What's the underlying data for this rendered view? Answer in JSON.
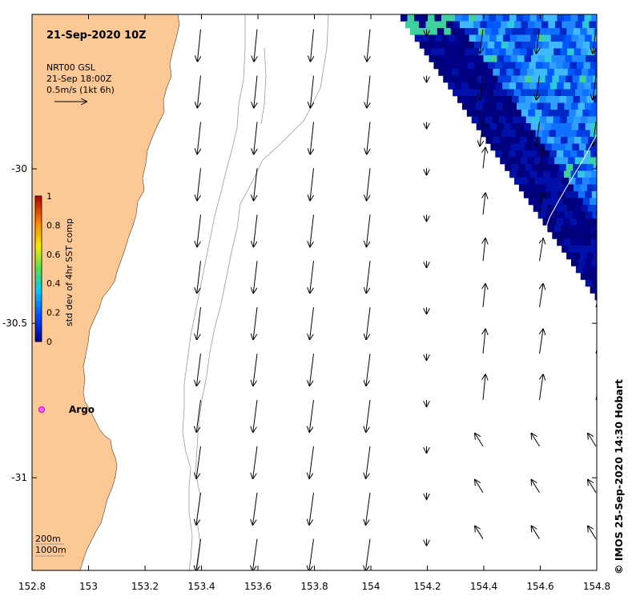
{
  "title": "21-Sep-2020 10Z",
  "vector_legend": {
    "line1": "NRT00 GSL",
    "line2": "21-Sep 18:00Z",
    "line3": "0.5m/s (1kt 6h)"
  },
  "colorbar": {
    "label": "std dev of 4hr SST comp",
    "ticks": [
      "1",
      "0.8",
      "0.6",
      "0.4",
      "0.2",
      "0"
    ]
  },
  "argo_label": "Argo",
  "depth_legend": {
    "line1": "200m",
    "line2": "1000m"
  },
  "credit": "© IMOS 25-Sep-2020 14:30 Hobart",
  "axes": {
    "x_ticks": [
      "152.8",
      "153",
      "153.2",
      "153.4",
      "153.6",
      "153.8",
      "154",
      "154.2",
      "154.4",
      "154.6",
      "154.8"
    ],
    "y_ticks": [
      "-30",
      "-30.5",
      "-31"
    ],
    "x_range": [
      152.8,
      154.8
    ],
    "y_range": [
      -31.3,
      -29.5
    ]
  },
  "colors": {
    "land": "#fbc896",
    "colorbar_stops": [
      "#00008b",
      "#0050ff",
      "#00c8ff",
      "#50e050",
      "#f0f000",
      "#ff8000",
      "#b00000"
    ]
  },
  "current_vectors": {
    "units": "m/s",
    "lon": [
      153.4,
      153.6,
      153.8,
      154.0,
      154.2,
      154.4,
      154.6,
      154.8
    ],
    "lat": [
      -29.6,
      -29.75,
      -29.9,
      -30.05,
      -30.2,
      -30.35,
      -30.5,
      -30.65,
      -30.8,
      -30.95,
      -31.1,
      -31.25
    ]
  }
}
